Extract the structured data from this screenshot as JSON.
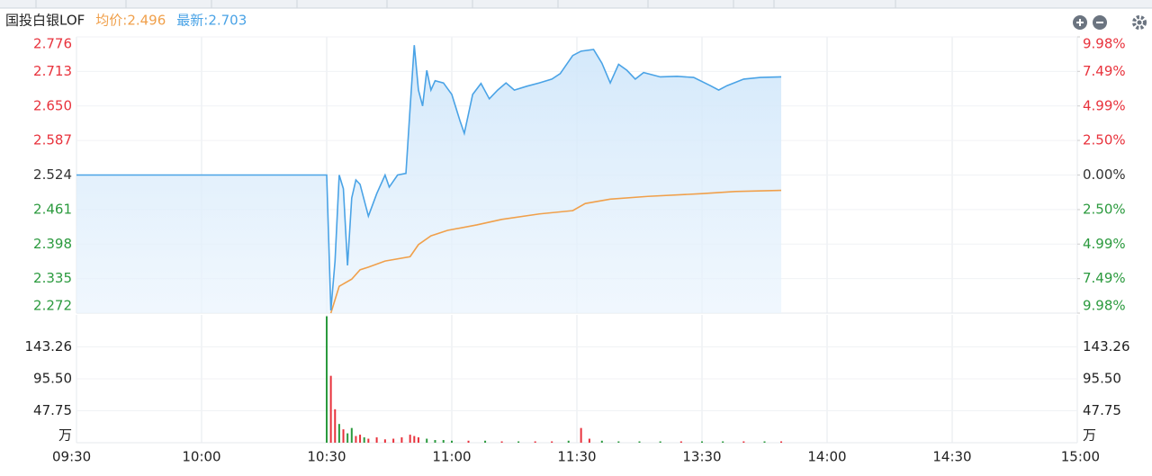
{
  "chart_data": [
    {
      "type": "line",
      "title": "国投白银LOF",
      "ylim": [
        2.272,
        2.776
      ],
      "yticks": [
        2.776,
        2.713,
        {
          "value": 2.65,
          "label": "2.650"
        },
        2.587,
        2.524,
        2.461,
        2.398,
        2.335,
        2.272
      ],
      "y2lim": [
        -9.98,
        9.98
      ],
      "y2ticks": [
        {
          "value": 9.98,
          "label": "9.98%"
        },
        {
          "value": 7.49,
          "label": "7.49%"
        },
        {
          "value": 4.99,
          "label": "4.99%"
        },
        {
          "value": 2.5,
          "label": "2.50%"
        },
        {
          "value": 0,
          "label": "0.00%"
        },
        {
          "value": -2.5,
          "label": "2.50%"
        },
        {
          "value": -4.99,
          "label": "4.99%"
        },
        {
          "value": -7.49,
          "label": "7.49%"
        },
        {
          "value": -9.98,
          "label": "9.98%"
        }
      ],
      "up_color": "#e8323c",
      "down_color": "#2b9a3e",
      "flat_color": "#333333",
      "grid": true,
      "series": [
        {
          "name": "均价:2.496",
          "color": "#f0a04b",
          "fill": false,
          "x": [
            "10:31",
            "10:33",
            "10:36",
            "10:38",
            "10:40",
            "10:44",
            "10:50",
            "10:52",
            "10:55",
            "10:59",
            "11:06",
            "11:12",
            "11:21",
            "11:29",
            "13:02",
            "13:08",
            "13:17",
            "13:30",
            "13:38",
            "13:49"
          ],
          "values": [
            2.272,
            2.321,
            2.334,
            2.351,
            2.356,
            2.367,
            2.375,
            2.397,
            2.413,
            2.423,
            2.433,
            2.443,
            2.453,
            2.459,
            2.472,
            2.48,
            2.485,
            2.49,
            2.494,
            2.496
          ]
        },
        {
          "name": "最新:2.703",
          "color": "#4aa3e6",
          "fill": true,
          "x": [
            "09:30",
            "10:30",
            "10:31",
            "10:32",
            "10:33",
            "10:34",
            "10:35",
            "10:36",
            "10:37",
            "10:38",
            "10:40",
            "10:42",
            "10:44",
            "10:45",
            "10:47",
            "10:49",
            "10:50",
            "10:51",
            "10:52",
            "10:53",
            "10:54",
            "10:55",
            "10:56",
            "10:58",
            "11:00",
            "11:02",
            "11:03",
            "11:05",
            "11:07",
            "11:09",
            "11:11",
            "11:13",
            "11:15",
            "11:18",
            "11:21",
            "11:24",
            "11:26",
            "11:29",
            "13:01",
            "13:04",
            "13:06",
            "13:08",
            "13:10",
            "13:12",
            "13:14",
            "13:16",
            "13:20",
            "13:24",
            "13:28",
            "13:32",
            "13:34",
            "13:36",
            "13:40",
            "13:44",
            "13:49"
          ],
          "values": [
            2.524,
            2.524,
            2.277,
            2.367,
            2.524,
            2.499,
            2.359,
            2.482,
            2.515,
            2.507,
            2.449,
            2.49,
            2.524,
            2.502,
            2.524,
            2.527,
            2.646,
            2.761,
            2.679,
            2.65,
            2.715,
            2.679,
            2.696,
            2.692,
            2.671,
            2.622,
            2.6,
            2.671,
            2.691,
            2.663,
            2.679,
            2.692,
            2.679,
            2.686,
            2.692,
            2.699,
            2.709,
            2.742,
            2.75,
            2.753,
            2.728,
            2.692,
            2.726,
            2.715,
            2.699,
            2.711,
            2.703,
            2.704,
            2.702,
            2.687,
            2.679,
            2.687,
            2.699,
            2.702,
            2.703
          ]
        }
      ]
    },
    {
      "type": "bar",
      "xlim": [
        "09:30",
        "15:00"
      ],
      "xticks": [
        "09:30",
        "10:00",
        "10:30",
        "11:00",
        "11:30",
        "13:30",
        "14:00",
        "14:30",
        "15:00"
      ],
      "ylim": [
        0,
        191
      ],
      "yticks": [
        {
          "value": 0,
          "label": "万"
        },
        47.75,
        {
          "value": 95.5,
          "label": "95.50"
        },
        143.26
      ],
      "grid": true,
      "series": [
        {
          "x": [
            "10:30",
            "10:31",
            "10:32",
            "10:33",
            "10:34",
            "10:35",
            "10:36",
            "10:37",
            "10:38",
            "10:39",
            "10:40",
            "10:42",
            "10:44",
            "10:46",
            "10:48",
            "10:50",
            "10:51",
            "10:52",
            "10:54",
            "10:56",
            "10:58",
            "11:00",
            "11:04",
            "11:08",
            "11:12",
            "11:16",
            "11:20",
            "11:24",
            "11:28",
            "13:01",
            "13:03",
            "13:06",
            "13:10",
            "13:15",
            "13:20",
            "13:25",
            "13:30",
            "13:35",
            "13:40",
            "13:45",
            "13:49"
          ],
          "values": [
            189,
            100,
            50,
            28,
            20,
            14,
            22,
            10,
            12,
            8,
            6,
            8,
            5,
            6,
            8,
            12,
            10,
            8,
            6,
            4,
            4,
            3,
            3,
            3,
            2,
            2,
            2,
            2,
            3,
            22,
            6,
            3,
            2,
            2,
            2,
            2,
            2,
            2,
            2,
            2,
            2
          ],
          "colors": [
            "#2b9a3e",
            "#e8323c",
            "#e8323c",
            "#2b9a3e",
            "#e8323c",
            "#2b9a3e",
            "#2b9a3e",
            "#e8323c",
            "#e8323c",
            "#2b9a3e",
            "#e8323c",
            "#e8323c",
            "#e8323c",
            "#e8323c",
            "#e8323c",
            "#e8323c",
            "#e8323c",
            "#e8323c",
            "#2b9a3e",
            "#2b9a3e",
            "#2b9a3e",
            "#2b9a3e",
            "#e8323c",
            "#2b9a3e",
            "#e8323c",
            "#2b9a3e",
            "#e8323c",
            "#e8323c",
            "#2b9a3e",
            "#e8323c",
            "#e8323c",
            "#2b9a3e",
            "#2b9a3e",
            "#2b9a3e",
            "#2b9a3e",
            "#e8323c",
            "#2b9a3e",
            "#2b9a3e",
            "#e8323c",
            "#2b9a3e",
            "#e8323c"
          ]
        }
      ]
    }
  ]
}
